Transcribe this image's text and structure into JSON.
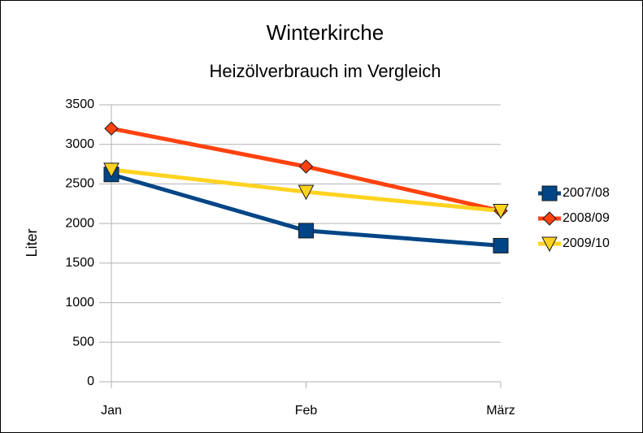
{
  "chart_data": {
    "type": "line",
    "title": "Winterkirche",
    "subtitle": "Heizölverbrauch im Vergleich",
    "y_label": "Liter",
    "categories": [
      "Jan",
      "Feb",
      "März"
    ],
    "series": [
      {
        "name": "2007/08",
        "color": "#004586",
        "marker": "square",
        "values": [
          2620,
          1910,
          1720
        ]
      },
      {
        "name": "2008/09",
        "color": "#ff420e",
        "marker": "diamond",
        "values": [
          3200,
          2720,
          2160
        ]
      },
      {
        "name": "2009/10",
        "color": "#ffd320",
        "marker": "triangle-down",
        "values": [
          2680,
          2400,
          2160
        ]
      }
    ],
    "ylim": [
      0,
      3500
    ],
    "yticks": [
      0,
      500,
      1000,
      1500,
      2000,
      2500,
      3000,
      3500
    ],
    "grid": true,
    "legend": "right"
  }
}
